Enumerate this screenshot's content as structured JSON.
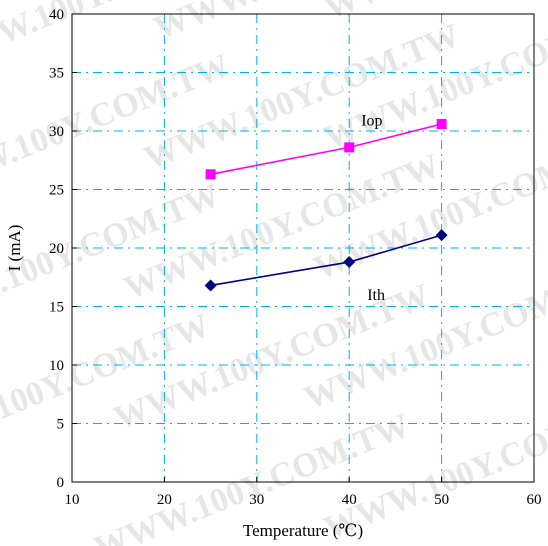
{
  "chart_data": {
    "type": "line",
    "title": "",
    "xlabel": "Temperature (℃)",
    "ylabel": "I (mA)",
    "xlim": [
      10,
      60
    ],
    "ylim": [
      0,
      40
    ],
    "x_ticks": [
      10,
      20,
      30,
      40,
      50,
      60
    ],
    "y_ticks": [
      0,
      5,
      10,
      15,
      20,
      25,
      30,
      35,
      40
    ],
    "grid": true,
    "series": [
      {
        "name": "Iop",
        "color": "#ff00ff",
        "marker": "square",
        "x": [
          25,
          40,
          50
        ],
        "y": [
          26.3,
          28.6,
          30.6
        ]
      },
      {
        "name": "Ith",
        "color": "#000080",
        "marker": "diamond",
        "x": [
          25,
          40,
          50
        ],
        "y": [
          16.8,
          18.8,
          21.1
        ]
      }
    ],
    "watermark": "WWW.100Y.COM.TW"
  }
}
